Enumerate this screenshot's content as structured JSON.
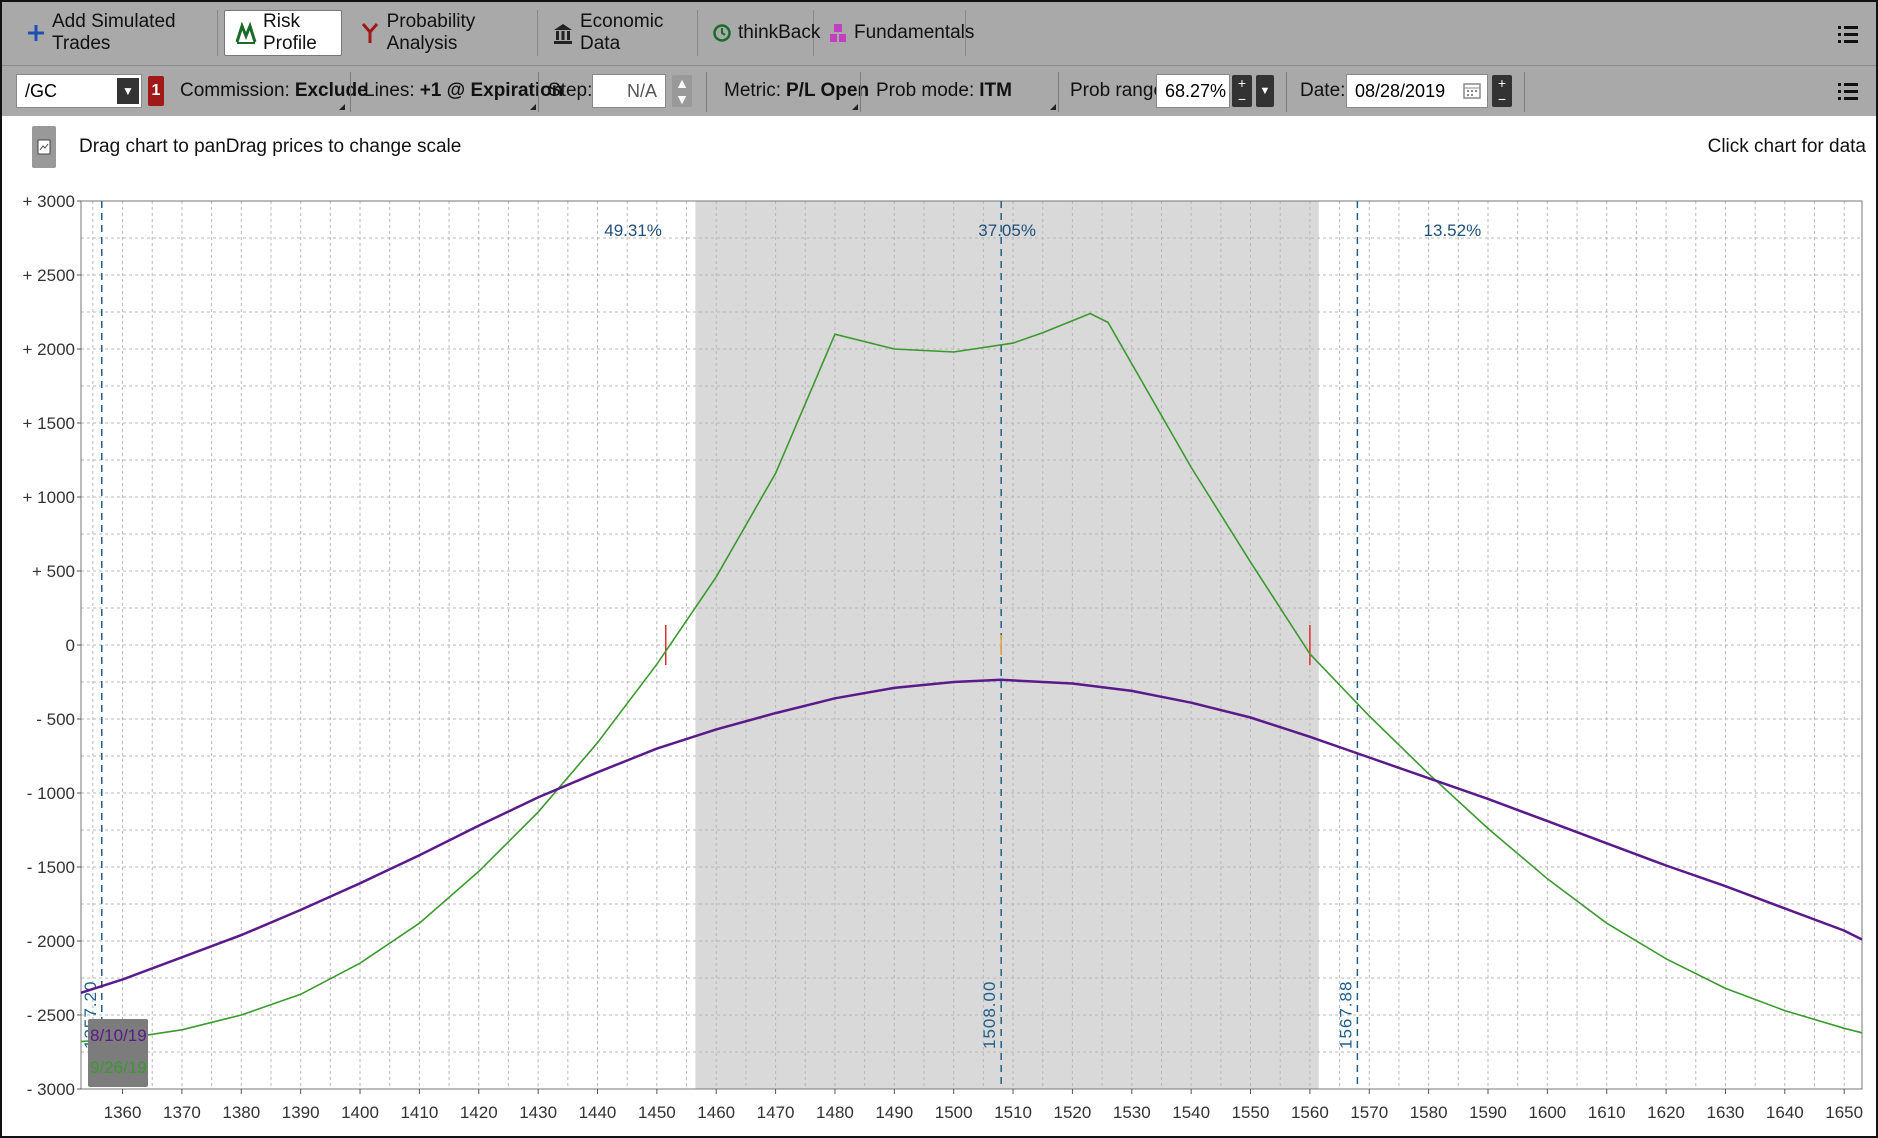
{
  "tabs": [
    {
      "label": "Add Simulated Trades",
      "icon": "plus-icon"
    },
    {
      "label": "Risk Profile",
      "icon": "risk-profile-icon",
      "active": true
    },
    {
      "label": "Probability Analysis",
      "icon": "probability-icon"
    },
    {
      "label": "Economic Data",
      "icon": "bank-icon"
    },
    {
      "label": "thinkBack",
      "icon": "clock-icon"
    },
    {
      "label": "Fundamentals",
      "icon": "fundamentals-icon"
    }
  ],
  "toolbar": {
    "symbol": "/GC",
    "badge": "1",
    "commission_label": "Commission:",
    "commission_value": "Exclude",
    "lines_label": "Lines:",
    "lines_value": "+1 @ Expiration",
    "step_label": "Step:",
    "step_value": "N/A",
    "metric_label": "Metric:",
    "metric_value": "P/L Open",
    "probmode_label": "Prob mode:",
    "probmode_value": "ITM",
    "probrange_label": "Prob range:",
    "probrange_value": "68.27%",
    "date_label": "Date:",
    "date_value": "08/28/2019"
  },
  "chart_header": {
    "hint_left": "Drag chart to panDrag prices to change scale",
    "hint_right": "Click chart for data"
  },
  "colors": {
    "green": "#3a9a2e",
    "purple": "#5b1a8c",
    "band": "#d9d9d9",
    "marker": "#1f5f8a"
  },
  "chart_data": {
    "type": "line",
    "xlim": [
      1353,
      1653
    ],
    "ylim": [
      -3000,
      3000
    ],
    "x_ticks": [
      1360,
      1370,
      1380,
      1390,
      1400,
      1410,
      1420,
      1430,
      1440,
      1450,
      1460,
      1470,
      1480,
      1490,
      1500,
      1510,
      1520,
      1530,
      1540,
      1550,
      1560,
      1570,
      1580,
      1590,
      1600,
      1610,
      1620,
      1630,
      1640,
      1650
    ],
    "y_ticks": [
      {
        "v": 3000,
        "label": "+ 3000"
      },
      {
        "v": 2500,
        "label": "+ 2500"
      },
      {
        "v": 2000,
        "label": "+ 2000"
      },
      {
        "v": 1500,
        "label": "+ 1500"
      },
      {
        "v": 1000,
        "label": "+ 1000"
      },
      {
        "v": 500,
        "label": "+ 500"
      },
      {
        "v": 0,
        "label": "0"
      },
      {
        "v": -500,
        "label": "- 500"
      },
      {
        "v": -1000,
        "label": "- 1000"
      },
      {
        "v": -1500,
        "label": "- 1500"
      },
      {
        "v": -2000,
        "label": "- 2000"
      },
      {
        "v": -2500,
        "label": "- 2500"
      },
      {
        "v": -3000,
        "label": "- 3000"
      }
    ],
    "prob_band": [
      1456.5,
      1561.5
    ],
    "prob_labels": [
      {
        "x": 1446,
        "label": "49.31%"
      },
      {
        "x": 1509,
        "label": "37.05%"
      },
      {
        "x": 1584,
        "label": "13.52%"
      }
    ],
    "vlines": [
      {
        "x": 1356.5,
        "label": "1357.20"
      },
      {
        "x": 1508,
        "label": "1508.00"
      },
      {
        "x": 1568,
        "label": "1567.88"
      }
    ],
    "breakeven_ticks": [
      1451.5,
      1560
    ],
    "legend": [
      {
        "label": "8/10/19",
        "color": "#5b1a8c"
      },
      {
        "label": "9/26/19",
        "color": "#3a9a2e"
      }
    ],
    "series": [
      {
        "name": "9/26/19",
        "color": "#3a9a2e",
        "points": [
          [
            1353,
            -2680
          ],
          [
            1360,
            -2660
          ],
          [
            1370,
            -2600
          ],
          [
            1380,
            -2500
          ],
          [
            1390,
            -2360
          ],
          [
            1400,
            -2150
          ],
          [
            1410,
            -1880
          ],
          [
            1420,
            -1530
          ],
          [
            1430,
            -1130
          ],
          [
            1440,
            -660
          ],
          [
            1450,
            -130
          ],
          [
            1460,
            460
          ],
          [
            1470,
            1160
          ],
          [
            1480,
            2100
          ],
          [
            1490,
            2000
          ],
          [
            1500,
            1980
          ],
          [
            1510,
            2040
          ],
          [
            1515,
            2110
          ],
          [
            1523,
            2240
          ],
          [
            1526,
            2180
          ],
          [
            1530,
            1900
          ],
          [
            1540,
            1200
          ],
          [
            1550,
            560
          ],
          [
            1560,
            -60
          ],
          [
            1570,
            -480
          ],
          [
            1580,
            -870
          ],
          [
            1590,
            -1240
          ],
          [
            1600,
            -1580
          ],
          [
            1610,
            -1880
          ],
          [
            1620,
            -2120
          ],
          [
            1630,
            -2320
          ],
          [
            1640,
            -2470
          ],
          [
            1650,
            -2590
          ],
          [
            1653,
            -2620
          ]
        ]
      },
      {
        "name": "8/10/19",
        "color": "#5b1a8c",
        "points": [
          [
            1353,
            -2350
          ],
          [
            1360,
            -2260
          ],
          [
            1370,
            -2110
          ],
          [
            1380,
            -1960
          ],
          [
            1390,
            -1790
          ],
          [
            1400,
            -1610
          ],
          [
            1410,
            -1420
          ],
          [
            1420,
            -1220
          ],
          [
            1430,
            -1030
          ],
          [
            1440,
            -860
          ],
          [
            1450,
            -700
          ],
          [
            1460,
            -570
          ],
          [
            1470,
            -460
          ],
          [
            1480,
            -360
          ],
          [
            1490,
            -290
          ],
          [
            1500,
            -250
          ],
          [
            1508,
            -235
          ],
          [
            1520,
            -260
          ],
          [
            1530,
            -310
          ],
          [
            1540,
            -390
          ],
          [
            1550,
            -490
          ],
          [
            1560,
            -620
          ],
          [
            1570,
            -760
          ],
          [
            1580,
            -900
          ],
          [
            1590,
            -1040
          ],
          [
            1600,
            -1190
          ],
          [
            1610,
            -1340
          ],
          [
            1620,
            -1490
          ],
          [
            1630,
            -1630
          ],
          [
            1640,
            -1780
          ],
          [
            1650,
            -1930
          ],
          [
            1653,
            -1990
          ]
        ]
      }
    ]
  }
}
